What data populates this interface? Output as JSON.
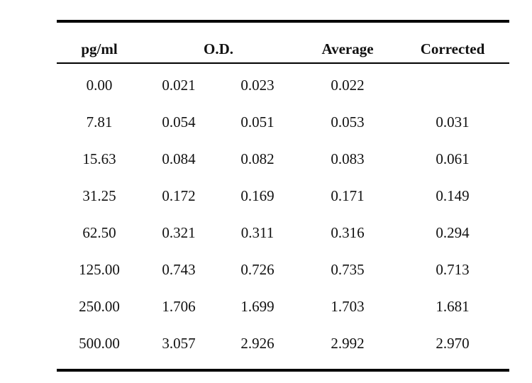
{
  "table": {
    "headers": {
      "concentration": "pg/ml",
      "od": "O.D.",
      "average": "Average",
      "corrected": "Corrected"
    },
    "rows": [
      {
        "conc": "0.00",
        "od1": "0.021",
        "od2": "0.023",
        "avg": "0.022",
        "corrected": ""
      },
      {
        "conc": "7.81",
        "od1": "0.054",
        "od2": "0.051",
        "avg": "0.053",
        "corrected": "0.031"
      },
      {
        "conc": "15.63",
        "od1": "0.084",
        "od2": "0.082",
        "avg": "0.083",
        "corrected": "0.061"
      },
      {
        "conc": "31.25",
        "od1": "0.172",
        "od2": "0.169",
        "avg": "0.171",
        "corrected": "0.149"
      },
      {
        "conc": "62.50",
        "od1": "0.321",
        "od2": "0.311",
        "avg": "0.316",
        "corrected": "0.294"
      },
      {
        "conc": "125.00",
        "od1": "0.743",
        "od2": "0.726",
        "avg": "0.735",
        "corrected": "0.713"
      },
      {
        "conc": "250.00",
        "od1": "1.706",
        "od2": "1.699",
        "avg": "1.703",
        "corrected": "1.681"
      },
      {
        "conc": "500.00",
        "od1": "3.057",
        "od2": "2.926",
        "avg": "2.992",
        "corrected": "2.970"
      }
    ]
  }
}
